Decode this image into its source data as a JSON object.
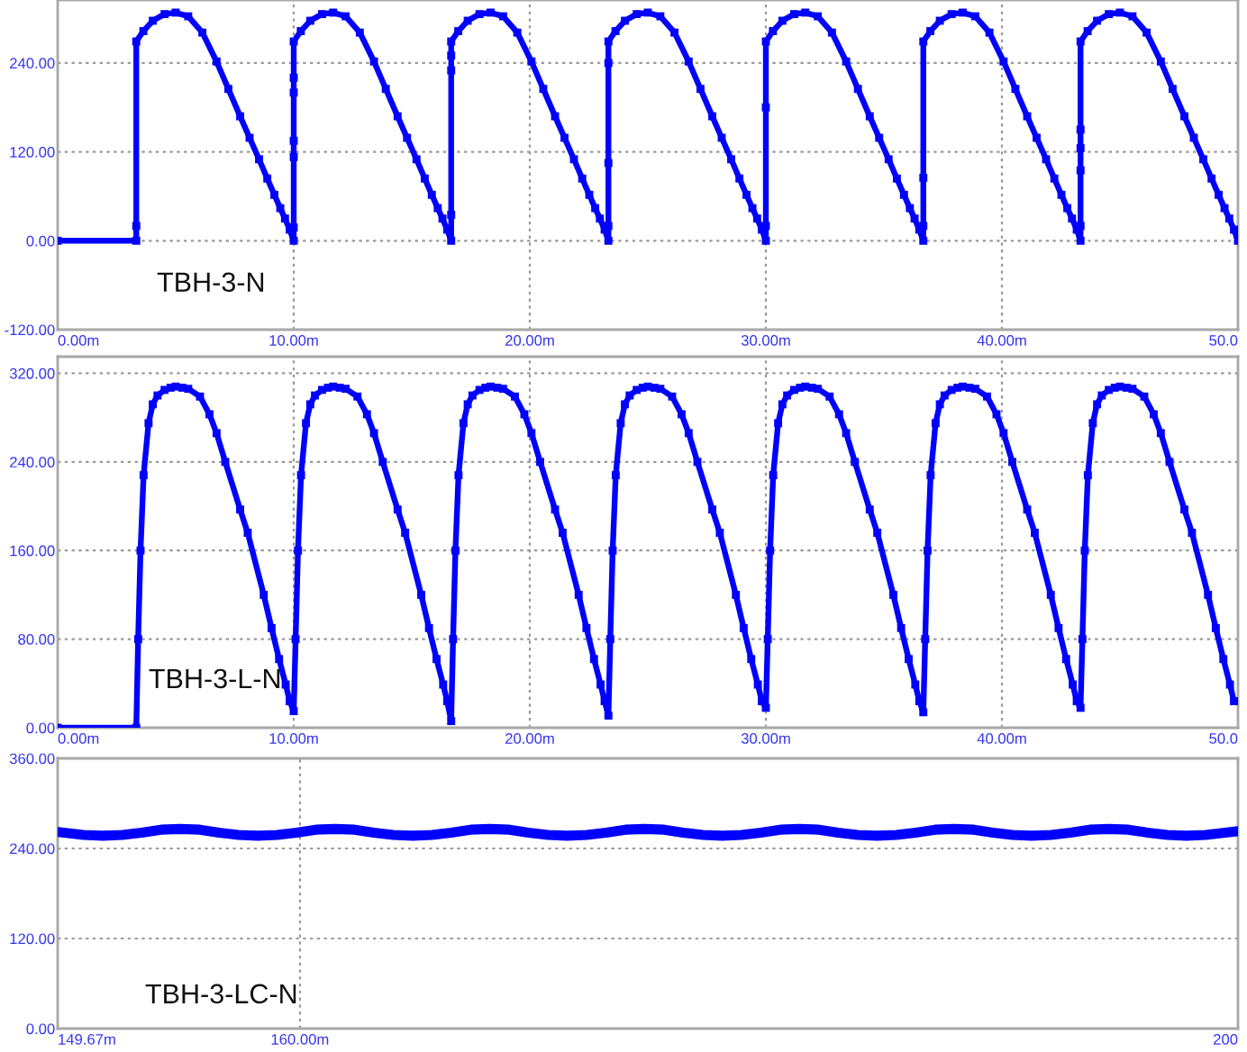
{
  "chart_data": [
    {
      "type": "line",
      "xlim": [
        0,
        50
      ],
      "ylim": [
        -120,
        325
      ],
      "xticks": [
        {
          "value": 0,
          "label": "0.00m"
        },
        {
          "value": 10,
          "label": "10.00m"
        },
        {
          "value": 20,
          "label": "20.00m"
        },
        {
          "value": 30,
          "label": "30.00m"
        },
        {
          "value": 40,
          "label": "40.00m"
        },
        {
          "value": 50,
          "label": "50.0"
        }
      ],
      "yticks": [
        {
          "value": -120,
          "label": "-120.00"
        },
        {
          "value": 0,
          "label": "0.00"
        },
        {
          "value": 120,
          "label": "120.00"
        },
        {
          "value": 240,
          "label": "240.00"
        }
      ],
      "grid": true,
      "marker": "square",
      "annotations": [
        "TBH-3-N"
      ],
      "series": [
        {
          "color": "#0000ff",
          "x": [
            0,
            3.33,
            3.33,
            3.33,
            3.63,
            4.03,
            4.53,
            5.0,
            5.53,
            6.13,
            6.73,
            7.23,
            7.73,
            8.13,
            8.53,
            8.88,
            9.18,
            9.43,
            9.63,
            9.83,
            10.0,
            10.0,
            10.0,
            10.0,
            10.0,
            10.0,
            10.0,
            10.3,
            10.7,
            11.2,
            11.67,
            12.2,
            12.8,
            13.4,
            13.9,
            14.4,
            14.8,
            15.2,
            15.55,
            15.85,
            16.1,
            16.3,
            16.5,
            16.67,
            16.67,
            16.67,
            16.67,
            16.67,
            16.97,
            17.37,
            17.87,
            18.34,
            18.87,
            19.47,
            20.07,
            20.57,
            21.07,
            21.47,
            21.87,
            22.22,
            22.52,
            22.77,
            22.97,
            23.17,
            23.33,
            23.33,
            23.33,
            23.33,
            23.33,
            23.63,
            24.03,
            24.53,
            25.0,
            25.53,
            26.13,
            26.73,
            27.23,
            27.73,
            28.13,
            28.53,
            28.88,
            29.18,
            29.43,
            29.63,
            29.83,
            30.0,
            30.0,
            30.0,
            30.0,
            30.3,
            30.7,
            31.2,
            31.67,
            32.2,
            32.8,
            33.4,
            33.9,
            34.4,
            34.8,
            35.2,
            35.55,
            35.85,
            36.1,
            36.3,
            36.5,
            36.67,
            36.67,
            36.67,
            36.67,
            36.97,
            37.37,
            37.87,
            38.34,
            38.87,
            39.47,
            40.07,
            40.57,
            41.07,
            41.47,
            41.87,
            42.22,
            42.52,
            42.77,
            42.97,
            43.17,
            43.33,
            43.33,
            43.33,
            43.33,
            43.33,
            43.33,
            43.63,
            44.03,
            44.53,
            45.0,
            45.53,
            46.13,
            46.73,
            47.23,
            47.73,
            48.13,
            48.53,
            48.88,
            49.18,
            49.43,
            49.63,
            49.83,
            50.0
          ],
          "values": [
            0,
            0,
            20,
            269,
            283,
            297,
            306,
            308,
            303,
            281,
            242,
            205,
            168,
            139,
            110,
            84,
            62,
            44,
            30,
            15,
            0,
            18,
            113,
            135,
            200,
            220,
            269,
            283,
            297,
            306,
            308,
            303,
            281,
            242,
            205,
            168,
            139,
            110,
            84,
            62,
            44,
            30,
            15,
            0,
            35,
            230,
            250,
            269,
            283,
            297,
            306,
            308,
            303,
            281,
            242,
            205,
            168,
            139,
            110,
            84,
            62,
            44,
            30,
            15,
            0,
            20,
            105,
            240,
            269,
            283,
            297,
            306,
            308,
            303,
            281,
            242,
            205,
            168,
            139,
            110,
            84,
            62,
            44,
            30,
            15,
            0,
            20,
            180,
            269,
            283,
            297,
            306,
            308,
            303,
            281,
            242,
            205,
            168,
            139,
            110,
            84,
            62,
            44,
            30,
            15,
            0,
            20,
            85,
            269,
            283,
            297,
            306,
            308,
            303,
            281,
            242,
            205,
            168,
            139,
            110,
            84,
            62,
            44,
            30,
            15,
            0,
            20,
            95,
            125,
            150,
            269,
            283,
            297,
            306,
            308,
            303,
            281,
            242,
            205,
            168,
            139,
            110,
            84,
            62,
            44,
            30,
            15,
            0
          ]
        }
      ]
    },
    {
      "type": "line",
      "xlim": [
        0,
        50
      ],
      "ylim": [
        0,
        335
      ],
      "xticks": [
        {
          "value": 0,
          "label": "0.00m"
        },
        {
          "value": 10,
          "label": "10.00m"
        },
        {
          "value": 20,
          "label": "20.00m"
        },
        {
          "value": 30,
          "label": "30.00m"
        },
        {
          "value": 40,
          "label": "40.00m"
        },
        {
          "value": 50,
          "label": "50.0"
        }
      ],
      "yticks": [
        {
          "value": 0,
          "label": "0.00"
        },
        {
          "value": 80,
          "label": "80.00"
        },
        {
          "value": 160,
          "label": "160.00"
        },
        {
          "value": 240,
          "label": "240.00"
        },
        {
          "value": 320,
          "label": "320.00"
        }
      ],
      "grid": true,
      "marker": "square",
      "annotations": [
        "TBH-3-L-N"
      ],
      "series": [
        {
          "color": "#0000ff",
          "x": [
            0,
            3.33,
            3.41,
            3.51,
            3.64,
            3.85,
            4.03,
            4.23,
            4.53,
            4.78,
            5.0,
            5.28,
            5.53,
            6.03,
            6.43,
            6.73,
            7.1,
            7.73,
            8.05,
            8.73,
            9.06,
            9.38,
            9.66,
            9.83,
            10.0,
            10.08,
            10.18,
            10.31,
            10.52,
            10.7,
            10.9,
            11.2,
            11.45,
            11.67,
            11.95,
            12.2,
            12.7,
            13.1,
            13.4,
            13.77,
            14.4,
            14.72,
            15.4,
            15.73,
            16.05,
            16.33,
            16.5,
            16.67,
            16.75,
            16.85,
            16.98,
            17.19,
            17.37,
            17.57,
            17.87,
            18.12,
            18.34,
            18.62,
            18.87,
            19.37,
            19.77,
            20.07,
            20.44,
            21.07,
            21.39,
            22.07,
            22.4,
            22.72,
            23.0,
            23.17,
            23.33,
            23.41,
            23.51,
            23.64,
            23.85,
            24.03,
            24.23,
            24.53,
            24.78,
            25.0,
            25.28,
            25.53,
            26.03,
            26.43,
            26.73,
            27.1,
            27.73,
            28.05,
            28.73,
            29.06,
            29.38,
            29.66,
            29.83,
            30.0,
            30.08,
            30.18,
            30.31,
            30.52,
            30.7,
            30.9,
            31.2,
            31.45,
            31.67,
            31.95,
            32.2,
            32.7,
            33.1,
            33.4,
            33.77,
            34.4,
            34.72,
            35.4,
            35.73,
            36.05,
            36.33,
            36.5,
            36.67,
            36.75,
            36.85,
            36.98,
            37.19,
            37.37,
            37.57,
            37.87,
            38.12,
            38.34,
            38.62,
            38.87,
            39.37,
            39.77,
            40.07,
            40.44,
            41.07,
            41.39,
            42.07,
            42.4,
            42.72,
            43.0,
            43.17,
            43.33,
            43.41,
            43.51,
            43.64,
            43.85,
            44.03,
            44.23,
            44.53,
            44.78,
            45.0,
            45.28,
            45.53,
            46.03,
            46.43,
            46.73,
            47.1,
            47.73,
            48.05,
            48.73,
            49.06,
            49.38,
            49.66,
            49.83
          ],
          "values": [
            0,
            0,
            80,
            160,
            228,
            275,
            292,
            300,
            305,
            307,
            308,
            307,
            306,
            299,
            283,
            266,
            240,
            197,
            176,
            120,
            90,
            62,
            39,
            24,
            15,
            80,
            160,
            228,
            275,
            292,
            300,
            305,
            307,
            308,
            307,
            306,
            299,
            283,
            266,
            240,
            197,
            176,
            120,
            90,
            62,
            39,
            24,
            6,
            80,
            160,
            228,
            275,
            292,
            300,
            305,
            307,
            308,
            307,
            306,
            299,
            283,
            266,
            240,
            197,
            176,
            120,
            90,
            62,
            39,
            24,
            11,
            80,
            160,
            228,
            275,
            292,
            300,
            305,
            307,
            308,
            307,
            306,
            299,
            283,
            266,
            240,
            197,
            176,
            120,
            90,
            62,
            39,
            24,
            18,
            80,
            160,
            228,
            275,
            292,
            300,
            305,
            307,
            308,
            307,
            306,
            299,
            283,
            266,
            240,
            197,
            176,
            120,
            90,
            62,
            39,
            24,
            14,
            80,
            160,
            228,
            275,
            292,
            300,
            305,
            307,
            308,
            307,
            306,
            299,
            283,
            266,
            240,
            197,
            176,
            120,
            90,
            62,
            39,
            24,
            18,
            80,
            160,
            228,
            275,
            292,
            300,
            305,
            307,
            308,
            307,
            306,
            299,
            283,
            266,
            240,
            197,
            176,
            120,
            90,
            62,
            39,
            24
          ]
        }
      ]
    },
    {
      "type": "line",
      "xlim": [
        149.67,
        200
      ],
      "ylim": [
        0,
        360
      ],
      "xticks": [
        {
          "value": 149.67,
          "label": "149.67m"
        },
        {
          "value": 160,
          "label": "160.00m"
        },
        {
          "value": 200,
          "label": "200"
        }
      ],
      "yticks": [
        {
          "value": 0,
          "label": "0.00"
        },
        {
          "value": 120,
          "label": "120.00"
        },
        {
          "value": 240,
          "label": "240.00"
        },
        {
          "value": 360,
          "label": "360.00"
        }
      ],
      "grid": true,
      "annotations": [
        "TBH-3-LC-N"
      ],
      "series": [
        {
          "color": "#0000ff",
          "x": [
            149.67,
            150.77,
            151.6,
            152.43,
            153.25,
            154.08,
            154.9,
            155.73,
            156.55,
            157.38,
            158.2,
            159.03,
            159.85,
            160.68,
            161.5,
            162.33,
            163.15,
            163.98,
            164.8,
            165.63,
            166.45,
            167.28,
            168.1,
            168.93,
            169.75,
            170.58,
            171.4,
            172.23,
            173.05,
            173.88,
            174.7,
            175.53,
            176.35,
            177.18,
            178.0,
            178.83,
            179.65,
            180.48,
            181.3,
            182.13,
            182.95,
            183.78,
            184.6,
            185.43,
            186.25,
            187.08,
            187.9,
            188.73,
            189.55,
            190.38,
            191.2,
            192.03,
            192.85,
            193.68,
            194.5,
            195.33,
            196.15,
            196.98,
            197.8,
            198.63,
            199.45,
            200.0
          ],
          "values": [
            262,
            258,
            257,
            258,
            261,
            265,
            266,
            265,
            261,
            258,
            257,
            258,
            261,
            265,
            266,
            265,
            261,
            258,
            257,
            258,
            261,
            265,
            266,
            265,
            261,
            258,
            257,
            258,
            261,
            265,
            266,
            265,
            261,
            258,
            257,
            258,
            261,
            265,
            266,
            265,
            261,
            258,
            257,
            258,
            261,
            265,
            266,
            265,
            261,
            258,
            257,
            258,
            261,
            265,
            266,
            265,
            261,
            258,
            257,
            258,
            261,
            263
          ]
        }
      ]
    }
  ]
}
